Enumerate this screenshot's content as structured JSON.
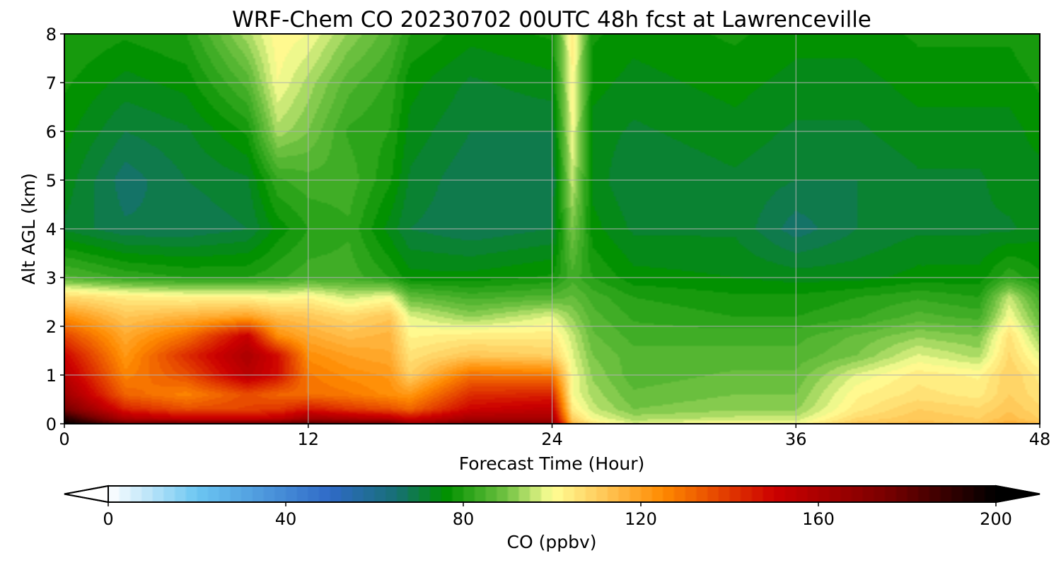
{
  "chart_data": {
    "type": "heatmap",
    "plot_style": "filled-contour",
    "title": "WRF-Chem CO  20230702 00UTC 48h fcst at Lawrenceville",
    "xlabel": "Forecast Time (Hour)",
    "ylabel": "Alt AGL (km)",
    "xlim": [
      0,
      48
    ],
    "ylim": [
      0,
      8
    ],
    "xticks": [
      0,
      12,
      24,
      36,
      48
    ],
    "yticks": [
      0,
      1,
      2,
      3,
      4,
      5,
      6,
      7,
      8
    ],
    "grid": true,
    "colorbar": {
      "label": "CO  (ppbv)",
      "min": 0,
      "max": 200,
      "ticks": [
        0,
        40,
        80,
        120,
        160,
        200
      ],
      "extend": "both",
      "orientation": "horizontal",
      "colors": {
        "0": "#ffffff",
        "20": "#6cc6f2",
        "50": "#2f6ac7",
        "65": "#176f74",
        "76": "#009000",
        "90": "#74c444",
        "100": "#ffff96",
        "112": "#ffc656",
        "125": "#ff8a00",
        "150": "#cc0000",
        "175": "#7a0000",
        "200": "#000000"
      }
    },
    "x": [
      0,
      3,
      6,
      9,
      10.5,
      12,
      14,
      16,
      17,
      20,
      24,
      25,
      26,
      28,
      33,
      36,
      39,
      42,
      45,
      46.5,
      48
    ],
    "y": [
      0,
      0.1,
      0.3,
      0.6,
      1.0,
      1.4,
      1.8,
      2.2,
      2.6,
      3.0,
      4.0,
      5.0,
      6.0,
      7.0,
      8.0
    ],
    "z": [
      [
        200,
        180,
        182,
        182,
        180,
        184,
        180,
        180,
        166,
        176,
        172,
        116,
        106,
        98,
        102,
        100,
        112,
        114,
        112,
        118,
        114
      ],
      [
        194,
        160,
        152,
        152,
        154,
        164,
        160,
        156,
        150,
        162,
        162,
        110,
        100,
        94,
        96,
        96,
        108,
        112,
        110,
        114,
        110
      ],
      [
        176,
        144,
        136,
        138,
        140,
        146,
        140,
        136,
        132,
        150,
        154,
        104,
        96,
        90,
        92,
        92,
        104,
        110,
        108,
        112,
        108
      ],
      [
        164,
        132,
        126,
        136,
        132,
        130,
        128,
        124,
        122,
        142,
        144,
        100,
        94,
        88,
        90,
        90,
        102,
        106,
        104,
        110,
        106
      ],
      [
        156,
        126,
        136,
        156,
        148,
        128,
        124,
        122,
        110,
        130,
        128,
        100,
        92,
        86,
        88,
        88,
        98,
        104,
        102,
        110,
        104
      ],
      [
        150,
        122,
        142,
        160,
        148,
        124,
        120,
        118,
        106,
        112,
        110,
        98,
        90,
        86,
        86,
        86,
        90,
        98,
        94,
        108,
        98
      ],
      [
        138,
        118,
        130,
        152,
        124,
        118,
        114,
        116,
        102,
        104,
        104,
        96,
        88,
        84,
        84,
        84,
        88,
        92,
        90,
        106,
        92
      ],
      [
        124,
        112,
        116,
        120,
        114,
        112,
        108,
        112,
        98,
        92,
        98,
        92,
        86,
        82,
        80,
        80,
        82,
        86,
        84,
        100,
        88
      ],
      [
        108,
        104,
        102,
        102,
        100,
        102,
        96,
        100,
        88,
        84,
        86,
        88,
        84,
        80,
        78,
        78,
        80,
        82,
        80,
        96,
        84
      ],
      [
        86,
        82,
        80,
        80,
        82,
        84,
        84,
        80,
        76,
        76,
        78,
        84,
        80,
        76,
        75,
        74,
        74,
        76,
        76,
        82,
        78
      ],
      [
        72,
        68,
        68,
        70,
        76,
        80,
        82,
        74,
        70,
        68,
        70,
        90,
        76,
        72,
        72,
        66,
        70,
        72,
        72,
        72,
        74
      ],
      [
        74,
        66,
        70,
        72,
        82,
        84,
        84,
        78,
        72,
        68,
        68,
        96,
        74,
        70,
        72,
        70,
        70,
        72,
        72,
        74,
        74
      ],
      [
        76,
        70,
        72,
        78,
        94,
        90,
        82,
        80,
        74,
        70,
        70,
        100,
        74,
        72,
        74,
        72,
        72,
        74,
        74,
        74,
        76
      ],
      [
        78,
        74,
        76,
        86,
        100,
        94,
        86,
        82,
        76,
        72,
        74,
        102,
        76,
        74,
        76,
        74,
        74,
        76,
        76,
        76,
        78
      ],
      [
        80,
        78,
        80,
        94,
        102,
        100,
        92,
        86,
        80,
        76,
        78,
        104,
        78,
        76,
        78,
        76,
        76,
        78,
        78,
        78,
        80
      ]
    ]
  }
}
